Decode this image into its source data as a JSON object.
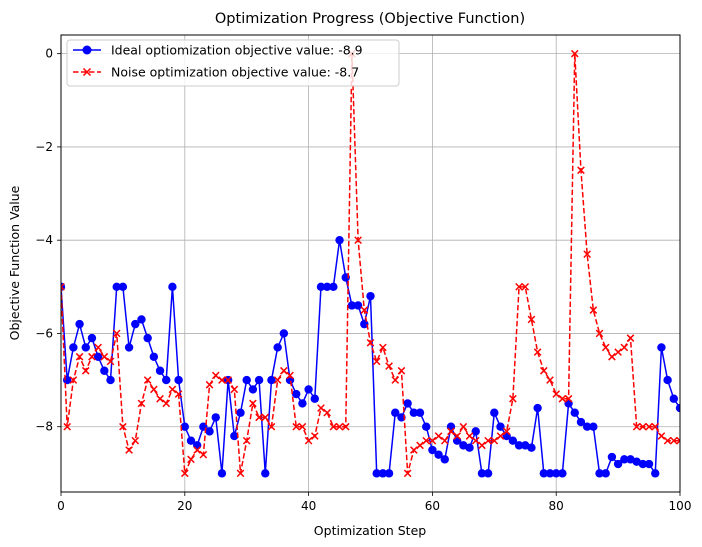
{
  "chart_data": {
    "type": "line",
    "title": "Optimization Progress (Objective Function)",
    "xlabel": "Optimization Step",
    "ylabel": "Objective Function Value",
    "xlim": [
      0,
      100
    ],
    "ylim": [
      -9.4,
      0.4
    ],
    "xticks": [
      0,
      20,
      40,
      60,
      80,
      100
    ],
    "yticks": [
      0,
      -2,
      -4,
      -6,
      -8
    ],
    "ytick_labels": [
      "0",
      "−2",
      "−4",
      "−6",
      "−8"
    ],
    "grid": true,
    "legend_position": "top-left",
    "series": [
      {
        "name": "Ideal optiomization objective value: -8.9",
        "color": "#0000ff",
        "marker": "circle",
        "linestyle": "solid",
        "values": [
          -5.0,
          -7.0,
          -6.3,
          -5.8,
          -6.3,
          -6.1,
          -6.5,
          -6.8,
          -7.0,
          -5.0,
          -5.0,
          -6.3,
          -5.8,
          -5.7,
          -6.1,
          -6.5,
          -6.8,
          -7.0,
          -5.0,
          -7.0,
          -8.0,
          -8.3,
          -8.4,
          -8.0,
          -8.1,
          -7.8,
          -9.0,
          -7.0,
          -8.2,
          -7.7,
          -7.0,
          -7.2,
          -7.0,
          -9.0,
          -7.0,
          -6.3,
          -6.0,
          -7.0,
          -7.3,
          -7.5,
          -7.2,
          -7.4,
          -5.0,
          -5.0,
          -5.0,
          -4.0,
          -4.8,
          -5.4,
          -5.4,
          -5.8,
          -5.2,
          -9.0,
          -9.0,
          -9.0,
          -7.7,
          -7.8,
          -7.5,
          -7.7,
          -7.7,
          -8.0,
          -8.5,
          -8.6,
          -8.7,
          -8.0,
          -8.3,
          -8.4,
          -8.45,
          -8.1,
          -9.0,
          -9.0,
          -7.7,
          -8.0,
          -8.2,
          -8.3,
          -8.4,
          -8.4,
          -8.45,
          -7.6,
          -9.0,
          -9.0,
          -9.0,
          -9.0,
          -7.5,
          -7.7,
          -7.9,
          -8.0,
          -8.0,
          -9.0,
          -9.0,
          -8.65,
          -8.8,
          -8.7,
          -8.7,
          -8.75,
          -8.8,
          -8.8,
          -9.0,
          -6.3,
          -7.0,
          -7.4,
          -7.6
        ]
      },
      {
        "name": "Noise optimization objective value: -8.7",
        "color": "#ff0000",
        "marker": "x",
        "linestyle": "dashed",
        "values": [
          -5.0,
          -8.0,
          -7.0,
          -6.5,
          -6.8,
          -6.5,
          -6.3,
          -6.5,
          -6.6,
          -6.0,
          -8.0,
          -8.5,
          -8.3,
          -7.5,
          -7.0,
          -7.2,
          -7.4,
          -7.5,
          -7.2,
          -7.3,
          -9.0,
          -8.7,
          -8.5,
          -8.6,
          -7.1,
          -6.9,
          -7.0,
          -7.0,
          -7.2,
          -9.0,
          -8.3,
          -7.5,
          -7.8,
          -7.8,
          -8.0,
          -7.0,
          -6.8,
          -6.9,
          -8.0,
          -8.0,
          -8.3,
          -8.2,
          -7.6,
          -7.7,
          -8.0,
          -8.0,
          -8.0,
          0.0,
          -4.0,
          -5.5,
          -6.2,
          -6.6,
          -6.3,
          -6.7,
          -7.0,
          -6.8,
          -9.0,
          -8.5,
          -8.4,
          -8.3,
          -8.3,
          -8.2,
          -8.3,
          -8.1,
          -8.2,
          -8.0,
          -8.2,
          -8.3,
          -8.4,
          -8.3,
          -8.3,
          -8.2,
          -8.1,
          -7.4,
          -5.0,
          -5.0,
          -5.7,
          -6.4,
          -6.8,
          -7.0,
          -7.3,
          -7.4,
          -7.4,
          0.0,
          -2.5,
          -4.3,
          -5.5,
          -6.0,
          -6.3,
          -6.5,
          -6.4,
          -6.3,
          -6.1,
          -8.0,
          -8.0,
          -8.0,
          -8.0,
          -8.2,
          -8.3,
          -8.3,
          -8.3
        ]
      }
    ]
  }
}
